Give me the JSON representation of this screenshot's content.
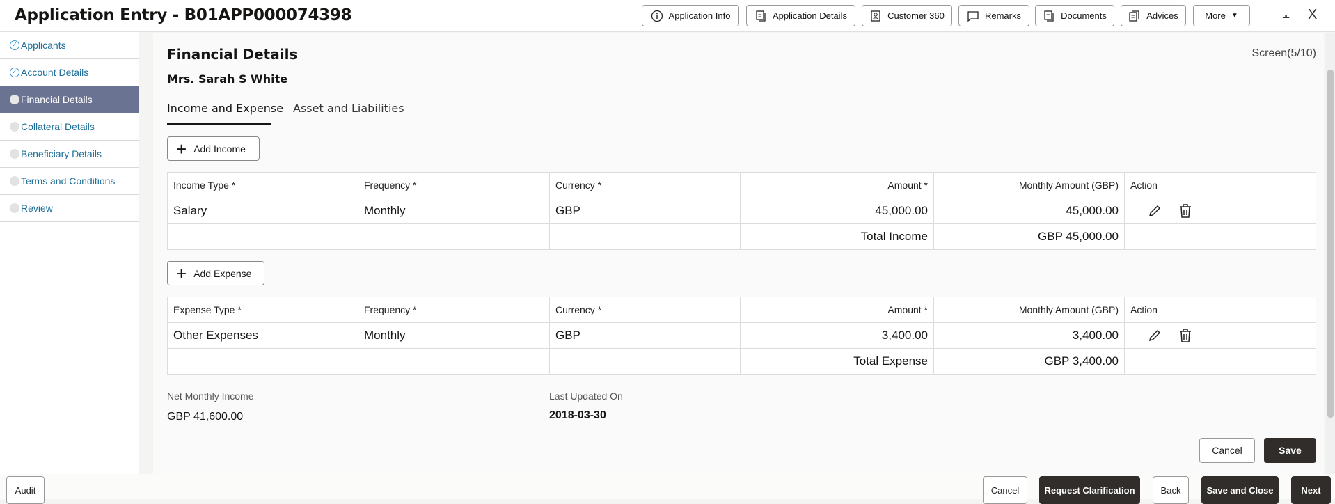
{
  "header": {
    "title": "Application Entry - B01APP000074398",
    "buttons": [
      {
        "label": "Application Info",
        "icon": "info-icon"
      },
      {
        "label": "Application Details",
        "icon": "document-icon"
      },
      {
        "label": "Customer 360",
        "icon": "customer-icon"
      },
      {
        "label": "Remarks",
        "icon": "comment-icon"
      },
      {
        "label": "Documents",
        "icon": "document-icon"
      },
      {
        "label": "Advices",
        "icon": "advices-icon"
      },
      {
        "label": "More",
        "icon": "caret-down-icon"
      }
    ],
    "minimize_glyph": "⌟⌞",
    "close_glyph": "X"
  },
  "sidebar": {
    "items": [
      {
        "label": "Applicants",
        "state": "done"
      },
      {
        "label": "Account Details",
        "state": "done"
      },
      {
        "label": "Financial Details",
        "state": "active"
      },
      {
        "label": "Collateral Details",
        "state": "pending"
      },
      {
        "label": "Beneficiary Details",
        "state": "pending"
      },
      {
        "label": "Terms and Conditions",
        "state": "pending"
      },
      {
        "label": "Review",
        "state": "pending"
      }
    ]
  },
  "main": {
    "title": "Financial Details",
    "screen": "Screen(5/10)",
    "customer": "Mrs. Sarah S White",
    "tabs": [
      {
        "label": "Income and Expense",
        "active": true
      },
      {
        "label": "Asset and Liabilities",
        "active": false
      }
    ],
    "income": {
      "add_label": "Add Income",
      "headers": [
        "Income Type  *",
        "Frequency  *",
        "Currency  *",
        "Amount  *",
        "Monthly Amount (GBP)",
        "Action"
      ],
      "rows": [
        {
          "type": "Salary",
          "frequency": "Monthly",
          "currency": "GBP",
          "amount": "45,000.00",
          "monthly": "45,000.00"
        }
      ],
      "total_label": "Total Income",
      "total": "GBP 45,000.00"
    },
    "expense": {
      "add_label": "Add Expense",
      "headers": [
        "Expense Type  *",
        "Frequency  *",
        "Currency  *",
        "Amount  *",
        "Monthly Amount (GBP)",
        "Action"
      ],
      "rows": [
        {
          "type": "Other Expenses",
          "frequency": "Monthly",
          "currency": "GBP",
          "amount": "3,400.00",
          "monthly": "3,400.00"
        }
      ],
      "total_label": "Total Expense",
      "total": "GBP 3,400.00"
    },
    "net_label": "Net Monthly Income",
    "net_value": "GBP 41,600.00",
    "updated_label": "Last Updated On",
    "updated_value": "2018-03-30",
    "cancel": "Cancel",
    "save": "Save"
  },
  "footer": {
    "audit": "Audit",
    "cancel": "Cancel",
    "request_clarification": "Request Clarification",
    "back": "Back",
    "save_close": "Save and Close",
    "next": "Next"
  }
}
